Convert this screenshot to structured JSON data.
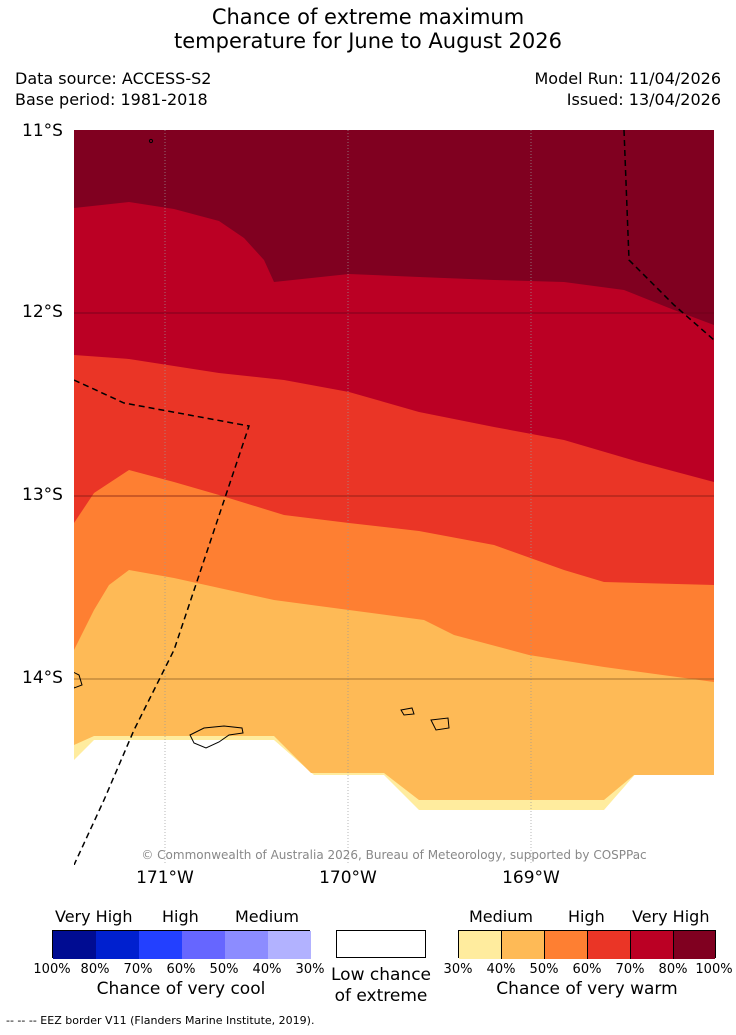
{
  "title": {
    "line1": "Chance of extreme maximum",
    "line2": "temperature for June to August 2026"
  },
  "meta": {
    "data_source": "Data source: ACCESS-S2",
    "base_period": "Base period: 1981-2018",
    "model_run": "Model Run: 11/04/2026",
    "issued": "Issued: 13/04/2026"
  },
  "map": {
    "lat_labels": [
      "11°S",
      "12°S",
      "13°S",
      "14°S"
    ],
    "lon_labels": [
      "171°W",
      "170°W",
      "169°W"
    ],
    "copyright": "© Commonwealth of Australia 2026, Bureau of Meteorology, supported by COSPPac",
    "category_colors": {
      "very_high_80_100": "#800020",
      "high_70_80": "#BB0024",
      "high_60_70": "#EA3526",
      "medium_50_60": "#FE7F32",
      "medium_40_50": "#FEBA56",
      "medium_30_40": "#FFEC9E",
      "low": "#FFFFFF"
    },
    "border_color": "#000000",
    "grid_color": "#999999"
  },
  "legend": {
    "cool": {
      "headings": [
        "Very High",
        "High",
        "Medium"
      ],
      "colors": [
        "#000C92",
        "#0020CF",
        "#2340FF",
        "#6666FF",
        "#8C8CFF",
        "#B2B2FF"
      ],
      "percent_labels": [
        "100%",
        "80%",
        "70%",
        "60%",
        "50%",
        "40%",
        "30%"
      ],
      "caption": "Chance of very cool"
    },
    "neutral": {
      "color": "#FFFFFF",
      "caption_line1": "Low chance",
      "caption_line2": "of extreme"
    },
    "warm": {
      "headings": [
        "Medium",
        "High",
        "Very High"
      ],
      "colors": [
        "#FFEC9E",
        "#FEBA56",
        "#FE7F32",
        "#EA3526",
        "#BB0024",
        "#800020"
      ],
      "percent_labels": [
        "30%",
        "40%",
        "50%",
        "60%",
        "70%",
        "80%",
        "100%"
      ],
      "caption": "Chance of very warm"
    }
  },
  "footer": {
    "eez": "-- -- -- EEZ border V11 (Flanders Marine Institute, 2019)."
  }
}
